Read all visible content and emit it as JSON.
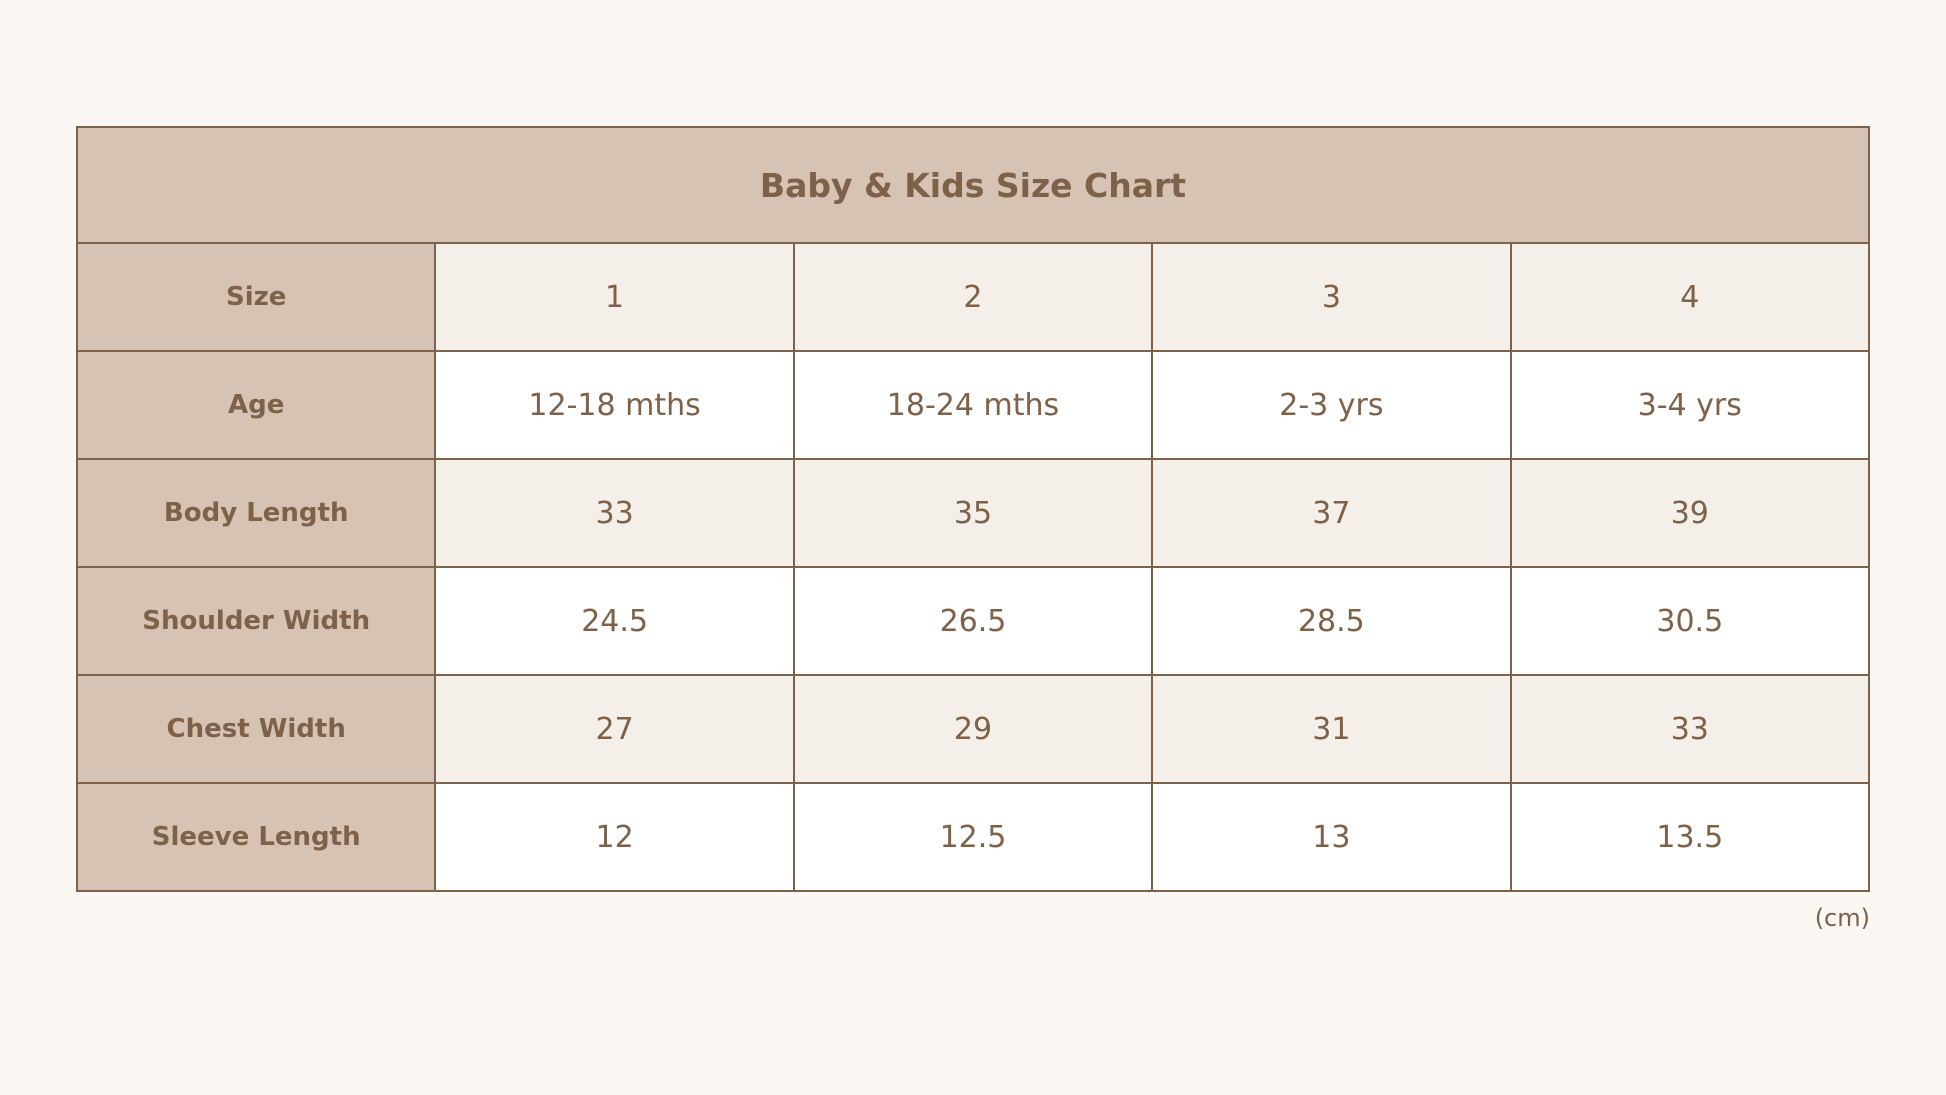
{
  "title": "Baby & Kids Size Chart",
  "rows": [
    {
      "label": "Size",
      "values": [
        "1",
        "2",
        "3",
        "4"
      ]
    },
    {
      "label": "Age",
      "values": [
        "12-18 mths",
        "18-24 mths",
        "2-3 yrs",
        "3-4 yrs"
      ]
    },
    {
      "label": "Body Length",
      "values": [
        "33",
        "35",
        "37",
        "39"
      ]
    },
    {
      "label": "Shoulder Width",
      "values": [
        "24.5",
        "26.5",
        "28.5",
        "30.5"
      ]
    },
    {
      "label": "Chest Width",
      "values": [
        "27",
        "29",
        "31",
        "33"
      ]
    },
    {
      "label": "Sleeve Length",
      "values": [
        "12",
        "12.5",
        "13",
        "13.5"
      ]
    }
  ],
  "unit": "(cm)",
  "colors": {
    "background": "#fbf8f3",
    "header_fill": "#d6c3b4",
    "border_and_text": "#7d6148",
    "shaded_row": "#f4f0e9",
    "plain_row": "#ffffff"
  }
}
